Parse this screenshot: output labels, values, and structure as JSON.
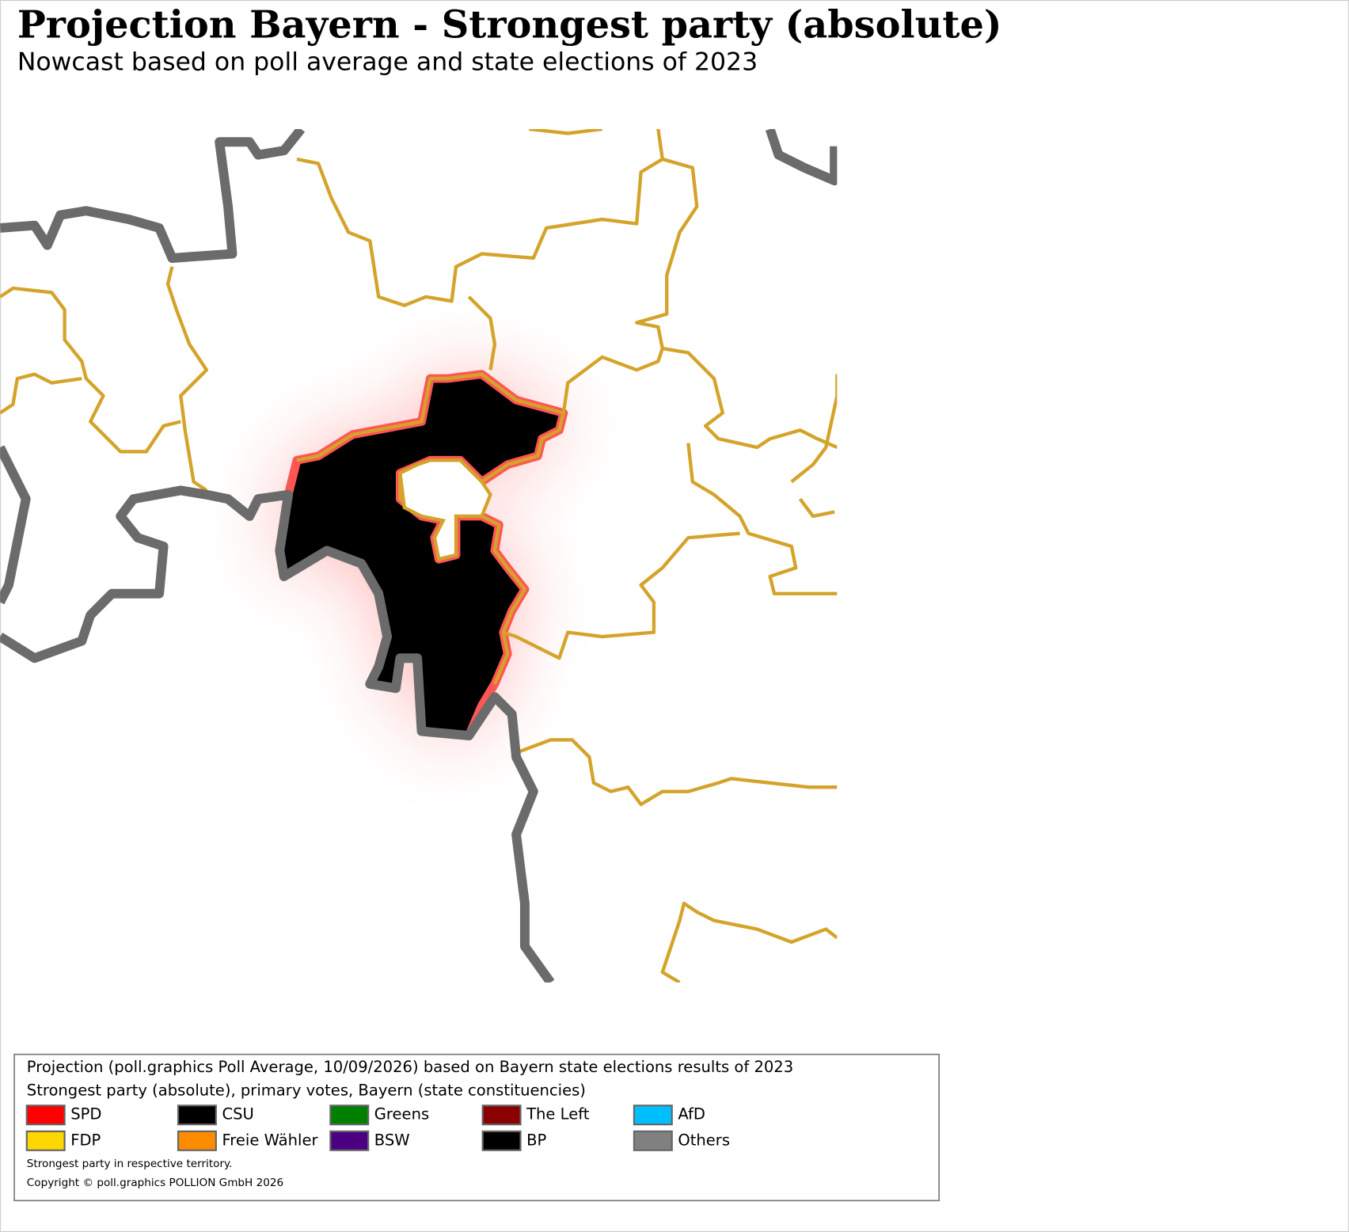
{
  "header": {
    "title": "Projection Bayern - Strongest party (absolute)",
    "subtitle": "Nowcast based on poll average and state elections of 2023"
  },
  "legend": {
    "heading": "Projection (poll.graphics Poll Average, 10/09/2026) based on Bayern state elections results of 2023",
    "subheading": "Strongest party (absolute), primary votes, Bayern (state constituencies)",
    "entries": [
      {
        "name": "SPD",
        "color": "#ff0000"
      },
      {
        "name": "CSU",
        "color": "#000000"
      },
      {
        "name": "Greens",
        "color": "#008000"
      },
      {
        "name": "The Left",
        "color": "#8b0000"
      },
      {
        "name": "AfD",
        "color": "#00bfff"
      },
      {
        "name": "FDP",
        "color": "#ffd700"
      },
      {
        "name": "Freie Wähler",
        "color": "#ff8c00"
      },
      {
        "name": "BSW",
        "color": "#4b0082"
      },
      {
        "name": "BP",
        "color": "#000000"
      },
      {
        "name": "Others",
        "color": "#808080"
      }
    ],
    "note": "Strongest party in respective territory.",
    "copyright": "Copyright © poll.graphics POLLION GmbH 2026"
  }
}
